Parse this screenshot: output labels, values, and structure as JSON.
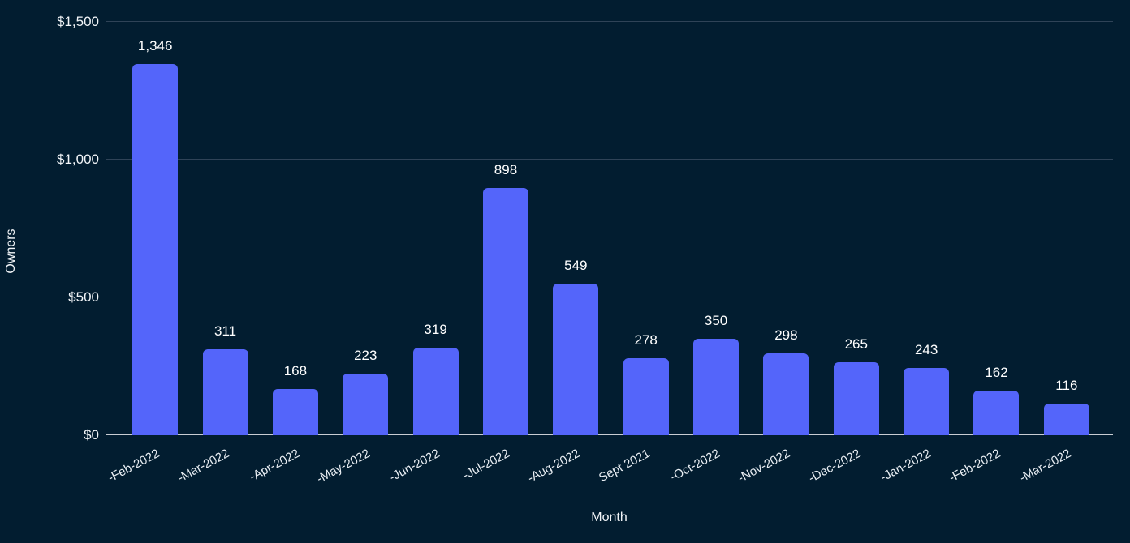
{
  "chart_data": {
    "type": "bar",
    "title": "",
    "xlabel": "Month",
    "ylabel": "Owners",
    "categories": [
      "-Feb-2022",
      "-Mar-2022",
      "-Apr-2022",
      "-May-2022",
      "-Jun-2022",
      "-Jul-2022",
      "-Aug-2022",
      "Sept 2021",
      "-Oct-2022",
      "-Nov-2022",
      "-Dec-2022",
      "-Jan-2022",
      "-Feb-2022",
      "-Mar-2022"
    ],
    "values": [
      1346,
      311,
      168,
      223,
      319,
      898,
      549,
      278,
      350,
      298,
      265,
      243,
      162,
      116
    ],
    "value_labels": [
      "1,346",
      "311",
      "168",
      "223",
      "319",
      "898",
      "549",
      "278",
      "350",
      "298",
      "265",
      "243",
      "162",
      "116"
    ],
    "ylim": [
      0,
      1500
    ],
    "yticks": [
      0,
      500,
      1000,
      1500
    ],
    "ytick_labels": [
      "$0",
      "$500",
      "$1,000",
      "$1,500"
    ],
    "grid": true,
    "legend": "none",
    "bar_color": "#5465FA",
    "background_color": "#021D30",
    "x_label_rotation_deg": -28
  }
}
